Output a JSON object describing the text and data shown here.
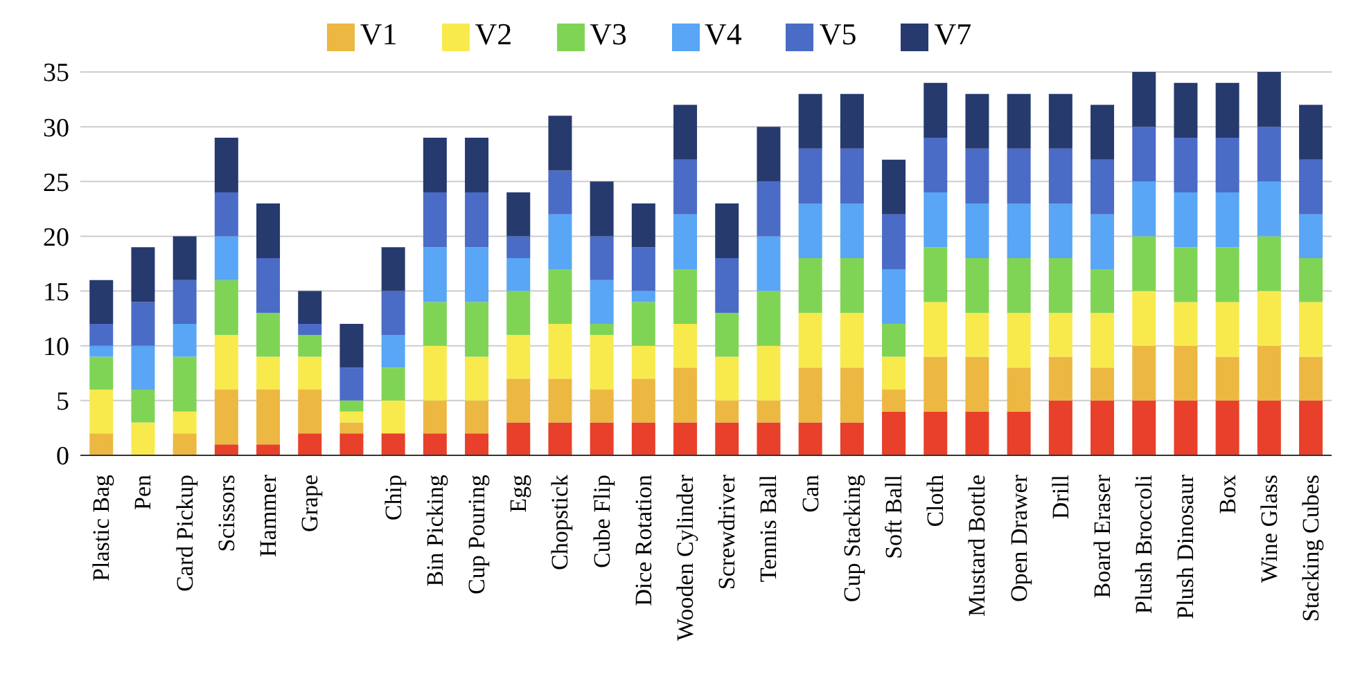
{
  "chart_data": {
    "type": "bar",
    "stacked": true,
    "categories": [
      "Plastic Bag",
      "Pen",
      "Card Pickup",
      "Scissors",
      "Hammer",
      "Grape",
      null,
      "Chip",
      "Bin Picking",
      "Cup Pouring",
      "Egg",
      "Chopstick",
      "Cube Flip",
      "Dice Rotation",
      "Wooden Cylinder",
      "Screwdriver",
      "Tennis Ball",
      "Can",
      "Cup Stacking",
      "Soft Ball",
      "Cloth",
      "Mustard Bottle",
      "Open Drawer",
      "Drill",
      "Board Eraser",
      "Plush Broccoli",
      "Plush Dinosaur",
      "Box",
      "Wine Glass",
      "Stacking Cubes"
    ],
    "series": [
      {
        "color": "#e8402a",
        "values": [
          0,
          0,
          0,
          1,
          1,
          2,
          2,
          2,
          2,
          2,
          3,
          3,
          3,
          3,
          3,
          3,
          3,
          3,
          3,
          4,
          4,
          4,
          4,
          5,
          5,
          5,
          5,
          5,
          5,
          5
        ]
      },
      {
        "name": "V1",
        "color": "#ecb842",
        "values": [
          2,
          0,
          2,
          5,
          5,
          4,
          1,
          0,
          3,
          3,
          4,
          4,
          3,
          4,
          5,
          2,
          2,
          5,
          5,
          2,
          5,
          5,
          4,
          4,
          3,
          5,
          5,
          4,
          5,
          4
        ]
      },
      {
        "name": "V2",
        "color": "#f8ea4c",
        "values": [
          4,
          3,
          2,
          5,
          3,
          3,
          1,
          3,
          5,
          4,
          4,
          5,
          5,
          3,
          4,
          4,
          5,
          5,
          5,
          3,
          5,
          4,
          5,
          4,
          5,
          5,
          4,
          5,
          5,
          5
        ]
      },
      {
        "name": "V3",
        "color": "#80d455",
        "values": [
          3,
          3,
          5,
          5,
          4,
          2,
          1,
          3,
          4,
          5,
          4,
          5,
          1,
          4,
          5,
          4,
          5,
          5,
          5,
          3,
          5,
          5,
          5,
          5,
          4,
          5,
          5,
          5,
          5,
          4
        ]
      },
      {
        "name": "V4",
        "color": "#58a6f5",
        "values": [
          1,
          4,
          3,
          4,
          0,
          0,
          0,
          3,
          5,
          5,
          3,
          5,
          4,
          1,
          5,
          0,
          5,
          5,
          5,
          5,
          5,
          5,
          5,
          5,
          5,
          5,
          5,
          5,
          5,
          4
        ]
      },
      {
        "name": "V5",
        "color": "#4a6bc6",
        "values": [
          2,
          4,
          4,
          4,
          5,
          1,
          3,
          4,
          5,
          5,
          2,
          4,
          4,
          4,
          5,
          5,
          5,
          5,
          5,
          5,
          5,
          5,
          5,
          5,
          5,
          5,
          5,
          5,
          5,
          5
        ]
      },
      {
        "name": "V7",
        "color": "#263a6e",
        "values": [
          4,
          5,
          4,
          5,
          5,
          3,
          4,
          4,
          5,
          5,
          4,
          5,
          5,
          4,
          5,
          5,
          5,
          5,
          5,
          5,
          5,
          5,
          5,
          5,
          5,
          5,
          5,
          5,
          5,
          5
        ]
      }
    ],
    "ylim": [
      0,
      35
    ],
    "yticks": [
      0,
      5,
      10,
      15,
      20,
      25,
      30,
      35
    ],
    "grid": "y",
    "legend": "top"
  }
}
